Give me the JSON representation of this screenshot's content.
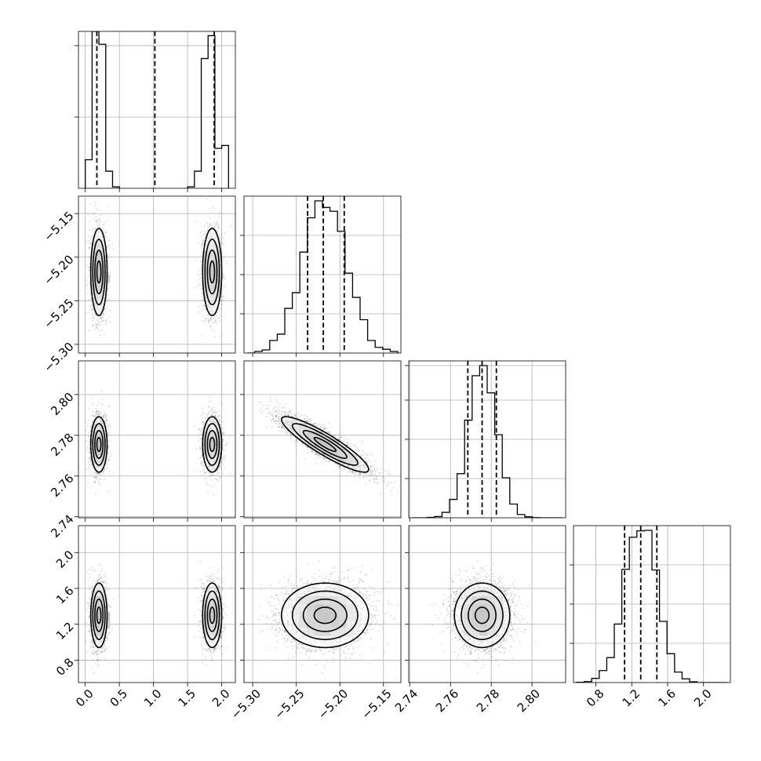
{
  "chart_data": {
    "type": "corner",
    "title": "",
    "parameters": [
      {
        "index": 0,
        "xlim": [
          -0.1,
          2.2
        ],
        "xticks": [
          0.0,
          0.5,
          1.0,
          1.5,
          2.0
        ],
        "xtick_labels": [
          "0.0",
          "0.5",
          "1.0",
          "1.5",
          "2.0"
        ],
        "modes": [
          {
            "mean": 0.2,
            "sd": 0.06,
            "weight": 0.5
          },
          {
            "mean": 1.86,
            "sd": 0.07,
            "weight": 0.5
          }
        ],
        "hist_edges": [
          0.0,
          0.1,
          0.2,
          0.3,
          0.4,
          0.5,
          1.5,
          1.6,
          1.7,
          1.8,
          1.9,
          2.0,
          2.1
        ],
        "quantiles": [
          0.17,
          1.02,
          1.89
        ]
      },
      {
        "index": 1,
        "lim": [
          -5.31,
          -5.13
        ],
        "ticks": [
          -5.3,
          -5.25,
          -5.2,
          -5.15
        ],
        "tick_labels": [
          "−5.30",
          "−5.25",
          "−5.20",
          "−5.15"
        ],
        "mean": -5.217,
        "sd": 0.025,
        "quantiles": [
          -5.237,
          -5.219,
          -5.195
        ]
      },
      {
        "index": 2,
        "lim": [
          2.7395,
          2.8165
        ],
        "ticks": [
          2.74,
          2.76,
          2.78,
          2.8
        ],
        "tick_labels": [
          "2.74",
          "2.76",
          "2.78",
          "2.80"
        ],
        "mean": 2.7755,
        "sd": 0.0068,
        "quantiles": [
          2.7685,
          2.7755,
          2.7825
        ]
      },
      {
        "index": 3,
        "lim": [
          0.55,
          2.3
        ],
        "ticks": [
          0.8,
          1.2,
          1.6,
          2.0
        ],
        "tick_labels": [
          "0.8",
          "1.2",
          "1.6",
          "2.0"
        ],
        "mean": 1.3,
        "sd": 0.18,
        "quantiles": [
          1.12,
          1.3,
          1.48
        ]
      }
    ],
    "histograms": [
      {
        "param": 0,
        "ylim": [
          0,
          1.1
        ],
        "yticks": [
          0.5,
          1.0
        ],
        "bins": [
          {
            "x": [
              0.0,
              0.1
            ],
            "h": 0.2
          },
          {
            "x": [
              0.1,
              0.2
            ],
            "h": 1.1
          },
          {
            "x": [
              0.2,
              0.3
            ],
            "h": 1.01
          },
          {
            "x": [
              0.3,
              0.4
            ],
            "h": 0.12
          },
          {
            "x": [
              0.4,
              0.5
            ],
            "h": 0.01
          },
          {
            "x": [
              1.5,
              1.6
            ],
            "h": 0.01
          },
          {
            "x": [
              1.6,
              1.7
            ],
            "h": 0.12
          },
          {
            "x": [
              1.7,
              1.8
            ],
            "h": 0.91
          },
          {
            "x": [
              1.8,
              1.9
            ],
            "h": 1.07
          },
          {
            "x": [
              1.9,
              2.0
            ],
            "h": 0.28
          },
          {
            "x": [
              2.0,
              2.1
            ],
            "h": 0.3
          }
        ]
      },
      {
        "param": 1,
        "ylim": [
          0,
          1.0
        ],
        "yticks": [
          0.25,
          0.5,
          0.75
        ]
      },
      {
        "param": 2,
        "ylim": [
          0,
          1.0
        ],
        "yticks": [
          0.25,
          0.5,
          0.75,
          0.97
        ]
      },
      {
        "param": 3,
        "ylim": [
          0,
          1.0
        ],
        "yticks": [
          0.25,
          0.5,
          0.75
        ]
      }
    ],
    "correlations": [
      {
        "pair": [
          1,
          2
        ],
        "rho": -0.9
      }
    ],
    "grid": true,
    "point_color": "#000000",
    "line_color": "#000000",
    "grid_color": "#b0b0b0"
  }
}
